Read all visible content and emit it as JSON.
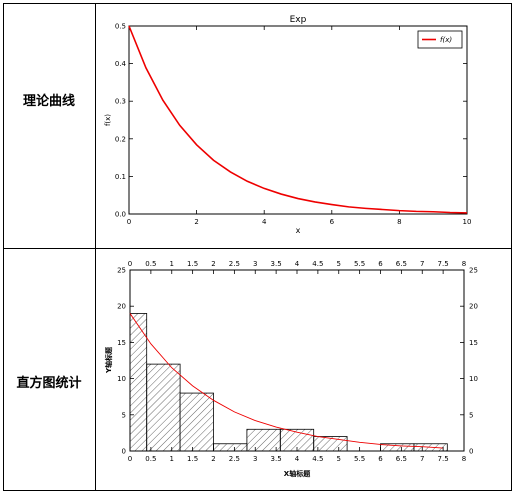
{
  "table": {
    "rows": [
      {
        "label": "理论曲线"
      },
      {
        "label": "直方图统计"
      }
    ]
  },
  "chart_data": [
    {
      "type": "line",
      "title": "Exp",
      "xlabel": "x",
      "ylabel": "f(x)",
      "xlim": [
        0,
        10
      ],
      "ylim": [
        0,
        0.5
      ],
      "xticks": [
        "0",
        "2",
        "4",
        "6",
        "8",
        "10"
      ],
      "yticks": [
        "0.0",
        "0.1",
        "0.2",
        "0.3",
        "0.4",
        "0.5"
      ],
      "legend": {
        "placement": "top-right",
        "entries": [
          "f(x)"
        ]
      },
      "series": [
        {
          "name": "f(x)",
          "color": "#ee0000",
          "x": [
            0,
            0.5,
            1,
            1.5,
            2,
            2.5,
            3,
            3.5,
            4,
            4.5,
            5,
            5.5,
            6,
            6.5,
            7,
            7.5,
            8,
            8.5,
            9,
            9.5,
            10
          ],
          "y": [
            0.5,
            0.389,
            0.303,
            0.236,
            0.184,
            0.143,
            0.112,
            0.087,
            0.068,
            0.053,
            0.041,
            0.032,
            0.025,
            0.019,
            0.015,
            0.012,
            0.009,
            0.007,
            0.006,
            0.004,
            0.003
          ]
        }
      ]
    },
    {
      "type": "bar",
      "xlabel": "X轴标题",
      "ylabel": "Y轴标题",
      "xlim": [
        0,
        8
      ],
      "ylim": [
        0,
        25
      ],
      "xticks": [
        "0",
        "0.5",
        "1",
        "1.5",
        "2",
        "2.5",
        "3",
        "3.5",
        "4",
        "4.5",
        "5",
        "5.5",
        "6",
        "6.5",
        "7",
        "7.5",
        "8"
      ],
      "yticks": [
        "0",
        "5",
        "10",
        "15",
        "20",
        "25"
      ],
      "hatch": "diagonal",
      "bins": [
        {
          "x0": 0,
          "x1": 0.4,
          "value": 19
        },
        {
          "x0": 0.4,
          "x1": 1.2,
          "value": 12
        },
        {
          "x0": 1.2,
          "x1": 2.0,
          "value": 8
        },
        {
          "x0": 2.0,
          "x1": 2.8,
          "value": 1
        },
        {
          "x0": 2.8,
          "x1": 3.6,
          "value": 3
        },
        {
          "x0": 3.6,
          "x1": 4.4,
          "value": 3
        },
        {
          "x0": 4.4,
          "x1": 5.2,
          "value": 2
        },
        {
          "x0": 6.0,
          "x1": 6.8,
          "value": 1
        },
        {
          "x0": 6.8,
          "x1": 7.6,
          "value": 1
        }
      ],
      "curve": {
        "color": "#ee0000",
        "x": [
          0,
          0.5,
          1,
          1.5,
          2,
          2.5,
          3,
          3.5,
          4,
          4.5,
          5,
          5.5,
          6,
          6.5,
          7,
          7.5
        ],
        "y": [
          19,
          14.8,
          11.5,
          9.0,
          7.0,
          5.4,
          4.2,
          3.3,
          2.6,
          2.0,
          1.6,
          1.2,
          0.9,
          0.7,
          0.6,
          0.4
        ]
      }
    }
  ]
}
